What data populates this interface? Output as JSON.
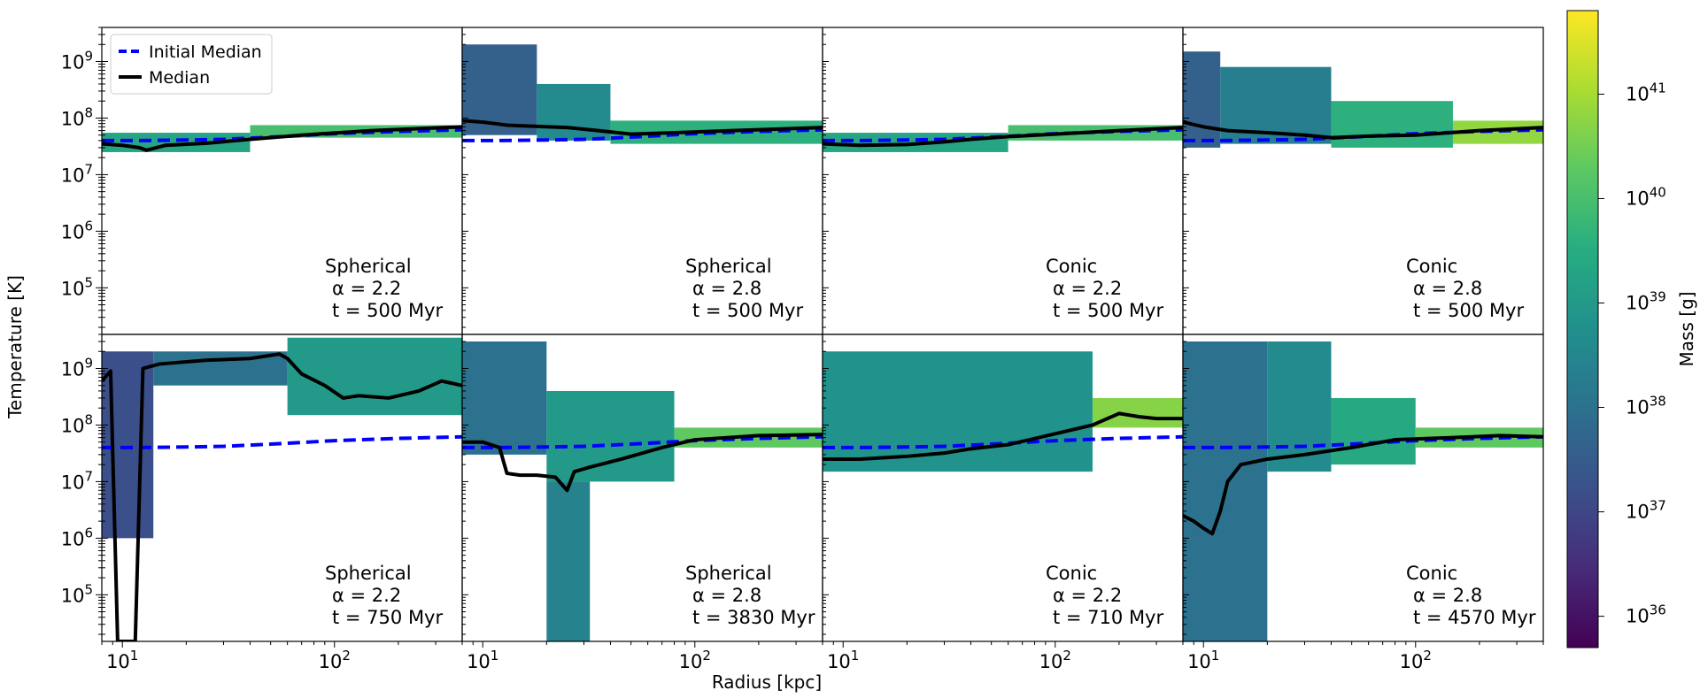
{
  "figure": {
    "xlabel": "Radius [kpc]",
    "ylabel": "Temperature [K]",
    "colorbar_label": "Mass [g]"
  },
  "colorbar": {
    "scale": "log",
    "range": [
      35.7,
      41.8
    ],
    "ticks": [
      {
        "value": 36,
        "label_base": "10",
        "label_exp": "36"
      },
      {
        "value": 37,
        "label_base": "10",
        "label_exp": "37"
      },
      {
        "value": 38,
        "label_base": "10",
        "label_exp": "38"
      },
      {
        "value": 39,
        "label_base": "10",
        "label_exp": "39"
      },
      {
        "value": 40,
        "label_base": "10",
        "label_exp": "40"
      },
      {
        "value": 41,
        "label_base": "10",
        "label_exp": "41"
      }
    ],
    "colormap": [
      "#440154",
      "#472c7a",
      "#3b518b",
      "#2c718e",
      "#21908d",
      "#27ad81",
      "#5cc863",
      "#aadc32",
      "#fde725"
    ]
  },
  "legend": {
    "placement": "upper-left of first panel",
    "entries": [
      {
        "label": "Initial Median",
        "color": "#0000ff",
        "style": "dashed"
      },
      {
        "label": "Median",
        "color": "#000000",
        "style": "solid"
      }
    ]
  },
  "chart_data": {
    "type": "heatmap",
    "xscale": "log",
    "yscale": "log",
    "xlim": [
      8,
      400
    ],
    "ylim": [
      15000,
      4000000000
    ],
    "x_ticks": [
      {
        "value": 10,
        "base": "10",
        "exp": "1"
      },
      {
        "value": 100,
        "base": "10",
        "exp": "2"
      }
    ],
    "y_ticks": [
      {
        "value": 100000,
        "base": "10",
        "exp": "5"
      },
      {
        "value": 1000000,
        "base": "10",
        "exp": "6"
      },
      {
        "value": 10000000,
        "base": "10",
        "exp": "7"
      },
      {
        "value": 100000000,
        "base": "10",
        "exp": "8"
      },
      {
        "value": 1000000000,
        "base": "10",
        "exp": "9"
      }
    ],
    "initial_median": {
      "x": [
        8,
        12,
        20,
        30,
        50,
        100,
        200,
        400
      ],
      "y": [
        40000000,
        40000000,
        41000000,
        42000000,
        46000000,
        53000000,
        58000000,
        62000000
      ]
    },
    "panels": [
      {
        "geometry": "Spherical",
        "alpha_label": "α = 2.2",
        "time_label": "t = 500 Myr",
        "median": {
          "x": [
            8,
            10,
            12,
            13,
            16,
            25,
            40,
            70,
            150,
            400
          ],
          "y": [
            35000000,
            33000000,
            30000000,
            27000000,
            33000000,
            36000000,
            42000000,
            50000000,
            60000000,
            70000000
          ]
        },
        "heat": [
          {
            "x0": 8,
            "x1": 40,
            "y0": 25000000,
            "y1": 55000000,
            "m": 39.3
          },
          {
            "x0": 40,
            "x1": 400,
            "y0": 45000000,
            "y1": 75000000,
            "m": 40.0
          }
        ]
      },
      {
        "geometry": "Spherical",
        "alpha_label": "α = 2.8",
        "time_label": "t = 500 Myr",
        "median": {
          "x": [
            8,
            10,
            13,
            17,
            25,
            35,
            50,
            80,
            150,
            400
          ],
          "y": [
            90000000,
            85000000,
            75000000,
            72000000,
            68000000,
            60000000,
            52000000,
            55000000,
            60000000,
            68000000
          ]
        },
        "heat": [
          {
            "x0": 8,
            "x1": 18,
            "y0": 50000000,
            "y1": 2000000000,
            "m": 37.6
          },
          {
            "x0": 18,
            "x1": 40,
            "y0": 40000000,
            "y1": 400000000,
            "m": 38.6
          },
          {
            "x0": 40,
            "x1": 400,
            "y0": 35000000,
            "y1": 90000000,
            "m": 39.6
          }
        ]
      },
      {
        "geometry": "Conic",
        "alpha_label": "α = 2.2",
        "time_label": "t = 500 Myr",
        "median": {
          "x": [
            8,
            12,
            20,
            30,
            40,
            60,
            100,
            200,
            400
          ],
          "y": [
            35000000,
            33000000,
            34000000,
            38000000,
            42000000,
            47000000,
            52000000,
            60000000,
            68000000
          ]
        },
        "heat": [
          {
            "x0": 8,
            "x1": 60,
            "y0": 25000000,
            "y1": 55000000,
            "m": 39.3
          },
          {
            "x0": 60,
            "x1": 400,
            "y0": 40000000,
            "y1": 75000000,
            "m": 40.0
          }
        ]
      },
      {
        "geometry": "Conic",
        "alpha_label": "α = 2.8",
        "time_label": "t = 500 Myr",
        "median": {
          "x": [
            8,
            10,
            13,
            20,
            30,
            40,
            60,
            100,
            200,
            400
          ],
          "y": [
            85000000,
            70000000,
            60000000,
            55000000,
            50000000,
            45000000,
            48000000,
            50000000,
            60000000,
            68000000
          ]
        },
        "heat": [
          {
            "x0": 8,
            "x1": 12,
            "y0": 30000000,
            "y1": 1500000000,
            "m": 37.6
          },
          {
            "x0": 12,
            "x1": 40,
            "y0": 35000000,
            "y1": 800000000,
            "m": 38.3
          },
          {
            "x0": 40,
            "x1": 150,
            "y0": 30000000,
            "y1": 200000000,
            "m": 39.6
          },
          {
            "x0": 150,
            "x1": 400,
            "y0": 35000000,
            "y1": 90000000,
            "m": 40.8
          }
        ]
      },
      {
        "geometry": "Spherical",
        "alpha_label": "α = 2.2",
        "time_label": "t = 750 Myr",
        "median": {
          "x": [
            8,
            8.8,
            9.5,
            10.5,
            11.5,
            12.5,
            15,
            25,
            40,
            55,
            60,
            70,
            90,
            110,
            130,
            180,
            250,
            320,
            400
          ],
          "y": [
            600000000,
            900000000,
            15000,
            15000,
            15000,
            1000000000,
            1200000000,
            1400000000,
            1500000000,
            1800000000,
            1500000000,
            800000000,
            500000000,
            300000000,
            330000000,
            300000000,
            400000000,
            600000000,
            500000000
          ]
        },
        "heat": [
          {
            "x0": 8,
            "x1": 14,
            "y0": 1000000,
            "y1": 2000000000,
            "m": 37.2
          },
          {
            "x0": 14,
            "x1": 60,
            "y0": 500000000,
            "y1": 2000000000,
            "m": 38.0
          },
          {
            "x0": 60,
            "x1": 400,
            "y0": 150000000,
            "y1": 3500000000,
            "m": 39.0
          }
        ]
      },
      {
        "geometry": "Spherical",
        "alpha_label": "α = 2.8",
        "time_label": "t = 3830 Myr",
        "median": {
          "x": [
            8,
            10,
            12,
            13,
            15,
            18,
            22,
            25,
            27,
            32,
            45,
            70,
            100,
            200,
            400
          ],
          "y": [
            50000000,
            50000000,
            40000000,
            14000000,
            13000000,
            13000000,
            12000000,
            7000000,
            15000000,
            18000000,
            25000000,
            40000000,
            55000000,
            65000000,
            68000000
          ]
        },
        "heat": [
          {
            "x0": 8,
            "x1": 20,
            "y0": 30000000,
            "y1": 3000000000,
            "m": 38.0
          },
          {
            "x0": 20,
            "x1": 80,
            "y0": 10000000,
            "y1": 400000000,
            "m": 39.0
          },
          {
            "x0": 20,
            "x1": 32,
            "y0": 15000,
            "y1": 10000000,
            "m": 38.4
          },
          {
            "x0": 80,
            "x1": 400,
            "y0": 40000000,
            "y1": 90000000,
            "m": 40.3
          }
        ]
      },
      {
        "geometry": "Conic",
        "alpha_label": "α = 2.2",
        "time_label": "t = 710 Myr",
        "median": {
          "x": [
            8,
            12,
            20,
            30,
            40,
            60,
            100,
            150,
            200,
            250,
            300,
            400
          ],
          "y": [
            25000000,
            25000000,
            28000000,
            32000000,
            38000000,
            45000000,
            70000000,
            100000000,
            160000000,
            140000000,
            130000000,
            130000000
          ]
        },
        "heat": [
          {
            "x0": 8,
            "x1": 150,
            "y0": 15000000,
            "y1": 2000000000,
            "m": 38.8
          },
          {
            "x0": 150,
            "x1": 400,
            "y0": 90000000,
            "y1": 300000000,
            "m": 40.7
          }
        ]
      },
      {
        "geometry": "Conic",
        "alpha_label": "α = 2.8",
        "time_label": "t = 4570 Myr",
        "median": {
          "x": [
            8,
            9,
            10,
            11,
            12,
            13,
            15,
            20,
            30,
            50,
            80,
            150,
            250,
            400
          ],
          "y": [
            2500000,
            2000000,
            1500000,
            1200000,
            3000000,
            10000000,
            20000000,
            25000000,
            30000000,
            40000000,
            55000000,
            60000000,
            65000000,
            62000000
          ]
        },
        "heat": [
          {
            "x0": 8,
            "x1": 20,
            "y0": 15000,
            "y1": 3000000000,
            "m": 38.0
          },
          {
            "x0": 20,
            "x1": 40,
            "y0": 15000000,
            "y1": 3000000000,
            "m": 38.6
          },
          {
            "x0": 40,
            "x1": 100,
            "y0": 20000000,
            "y1": 300000000,
            "m": 39.4
          },
          {
            "x0": 100,
            "x1": 400,
            "y0": 40000000,
            "y1": 90000000,
            "m": 40.3
          }
        ]
      }
    ]
  }
}
